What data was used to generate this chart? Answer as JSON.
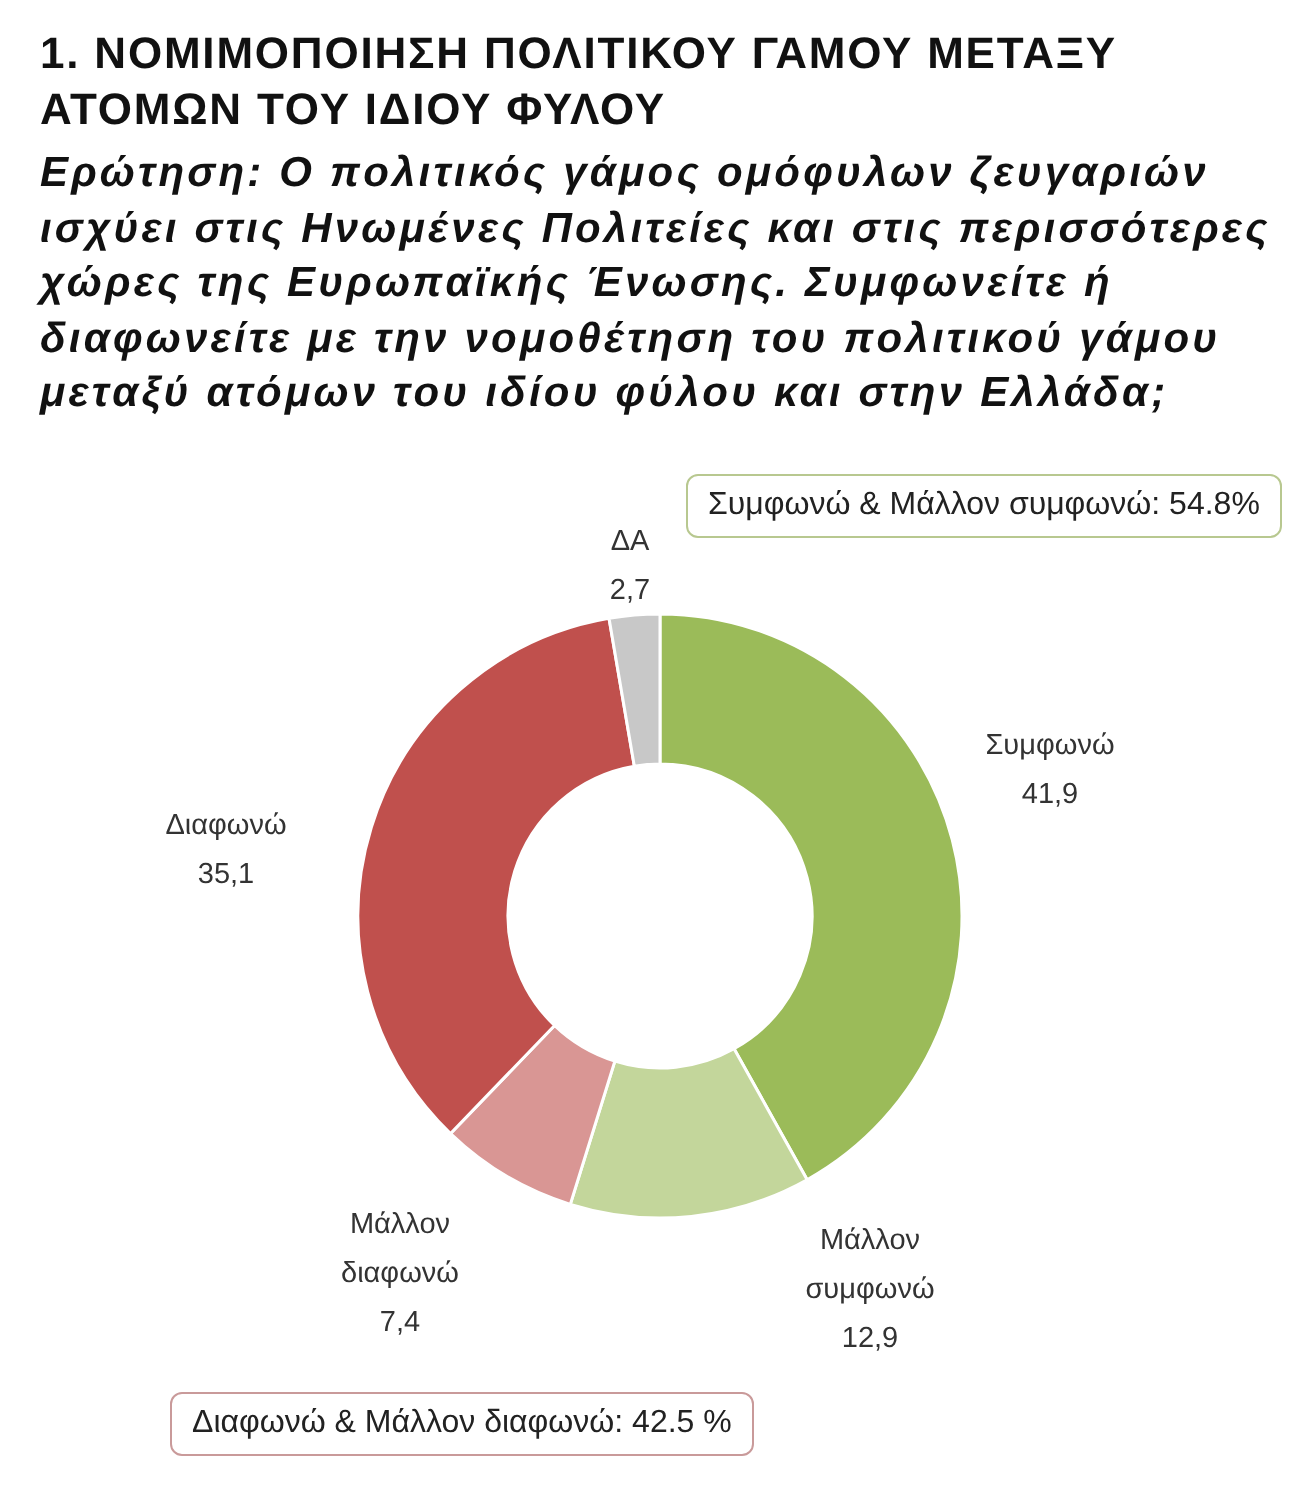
{
  "chart_data": {
    "type": "donut",
    "title": "1. ΝΟΜΙΜΟΠΟΙΗΣΗ ΠΟΛΙΤΙΚΟΥ ΓΑΜΟΥ ΜΕΤΑΞΥ ΑΤΟΜΩΝ ΤΟΥ ΙΔΙΟΥ ΦΥΛΟΥ",
    "subtitle": "Ερώτηση: Ο πολιτικός γάμος ομόφυλων ζευγαριών ισχύει στις Ηνωμένες Πολιτείες και στις περισσότερες χώρες της Ευρωπαϊκής Ένωσης. Συμφωνείτε ή διαφωνείτε με την νομοθέτηση του πολιτικού γάμου μεταξύ ατόμων του ιδίου φύλου και στην Ελλάδα;",
    "categories": [
      "Συμφωνώ",
      "Μάλλον συμφωνώ",
      "Μάλλον διαφωνώ",
      "Διαφωνώ",
      "ΔΑ"
    ],
    "values": [
      41.9,
      12.9,
      7.4,
      35.1,
      2.7
    ],
    "colors": [
      "#9bbb59",
      "#c3d69b",
      "#d99694",
      "#c0504d",
      "#c8c8c8"
    ],
    "value_labels": [
      "41,9",
      "12,9",
      "7,4",
      "35,1",
      "2,7"
    ],
    "annotations": [
      "Συμφωνώ & Μάλλον συμφωνώ: 54.8%",
      "Διαφωνώ & Μάλλον διαφωνώ: 42.5 %"
    ]
  }
}
